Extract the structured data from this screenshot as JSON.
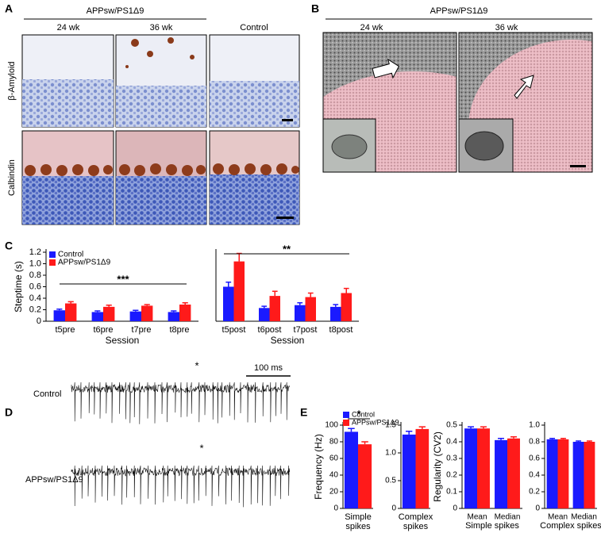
{
  "figure": {
    "A": {
      "label": "A",
      "group": "APPsw/PS1Δ9",
      "columns": [
        "24 wk",
        "36 wk",
        "Control"
      ],
      "rows": [
        "β-Amyloid",
        "Calbindin"
      ]
    },
    "B": {
      "label": "B",
      "group": "APPsw/PS1Δ9",
      "columns": [
        "24 wk",
        "36 wk"
      ]
    },
    "C": {
      "label": "C"
    },
    "D": {
      "label": "D",
      "traces": [
        "Control",
        "APPsw/PS1Δ9"
      ],
      "scale_bar": "100 ms",
      "markers": [
        "*",
        "*"
      ]
    },
    "E": {
      "label": "E"
    }
  },
  "chart_data": [
    {
      "type": "bar",
      "y_label": "Steptime (s)",
      "x_label": "Session",
      "categories": [
        "t5pre",
        "t6pre",
        "t7pre",
        "t8pre"
      ],
      "series": [
        {
          "name": "Control",
          "color": "#1a1aff",
          "values": [
            0.19,
            0.16,
            0.17,
            0.16
          ],
          "errors": [
            0.02,
            0.02,
            0.02,
            0.02
          ]
        },
        {
          "name": "APPsw/PS1Δ9",
          "color": "#ff1a1a",
          "values": [
            0.31,
            0.25,
            0.27,
            0.29
          ],
          "errors": [
            0.03,
            0.03,
            0.02,
            0.03
          ]
        }
      ],
      "ylim": [
        0,
        1.2
      ],
      "yticks": [
        0,
        0.2,
        0.4,
        0.6,
        0.8,
        {
          "value": 1,
          "label": "1.0"
        },
        1.2
      ],
      "legend": "upper left",
      "annotation": "***"
    },
    {
      "type": "bar",
      "x_label": "Session",
      "categories": [
        "t5post",
        "t6post",
        "t7post",
        "t8post"
      ],
      "series": [
        {
          "color": "#1a1aff",
          "values": [
            0.6,
            0.23,
            0.28,
            0.25
          ],
          "errors": [
            0.08,
            0.03,
            0.04,
            0.04
          ]
        },
        {
          "color": "#ff1a1a",
          "values": [
            1.04,
            0.44,
            0.42,
            0.49
          ],
          "errors": [
            0.14,
            0.08,
            0.07,
            0.08
          ]
        }
      ],
      "ylim": [
        0,
        1.2
      ],
      "annotation": "**"
    },
    {
      "type": "bar",
      "y_label": "Frequency (Hz)",
      "x_label": [
        "Simple",
        "spikes"
      ],
      "series": [
        {
          "name": "Control",
          "color": "#1a1aff",
          "values": [
            92
          ],
          "errors": [
            4
          ]
        },
        {
          "name": "APPsw/PS1Δ9",
          "color": "#ff1a1a",
          "values": [
            77
          ],
          "errors": [
            3
          ]
        }
      ],
      "ylim": [
        0,
        100
      ],
      "yticks": [
        0,
        20,
        40,
        60,
        80,
        100
      ],
      "legend": "upper left",
      "annotation": "*"
    },
    {
      "type": "bar",
      "x_label": [
        "Complex",
        "spikes"
      ],
      "series": [
        {
          "color": "#1a1aff",
          "values": [
            1.33
          ],
          "errors": [
            0.06
          ]
        },
        {
          "color": "#ff1a1a",
          "values": [
            1.43
          ],
          "errors": [
            0.04
          ]
        }
      ],
      "ylim": [
        0,
        1.5
      ],
      "yticks": [
        0,
        0.5,
        {
          "value": 1,
          "label": "1.0"
        },
        1.5
      ]
    },
    {
      "type": "bar",
      "y_label": "Regularity (CV2)",
      "x_label": "Simple spikes",
      "categories": [
        "Mean",
        "Median"
      ],
      "series": [
        {
          "color": "#1a1aff",
          "values": [
            0.48,
            0.41
          ],
          "errors": [
            0.01,
            0.01
          ]
        },
        {
          "color": "#ff1a1a",
          "values": [
            0.48,
            0.42
          ],
          "errors": [
            0.01,
            0.01
          ]
        }
      ],
      "ylim": [
        0,
        0.5
      ],
      "yticks": [
        0,
        0.1,
        0.2,
        0.3,
        0.4,
        0.5
      ]
    },
    {
      "type": "bar",
      "x_label": "Complex spikes",
      "categories": [
        "Mean",
        "Median"
      ],
      "series": [
        {
          "color": "#1a1aff",
          "values": [
            0.83,
            0.8
          ],
          "errors": [
            0.01,
            0.01
          ]
        },
        {
          "color": "#ff1a1a",
          "values": [
            0.83,
            0.8
          ],
          "errors": [
            0.01,
            0.01
          ]
        }
      ],
      "ylim": [
        0,
        1
      ],
      "yticks": [
        0,
        0.2,
        0.4,
        0.6,
        0.8,
        {
          "value": 1,
          "label": "1.0"
        }
      ]
    }
  ]
}
